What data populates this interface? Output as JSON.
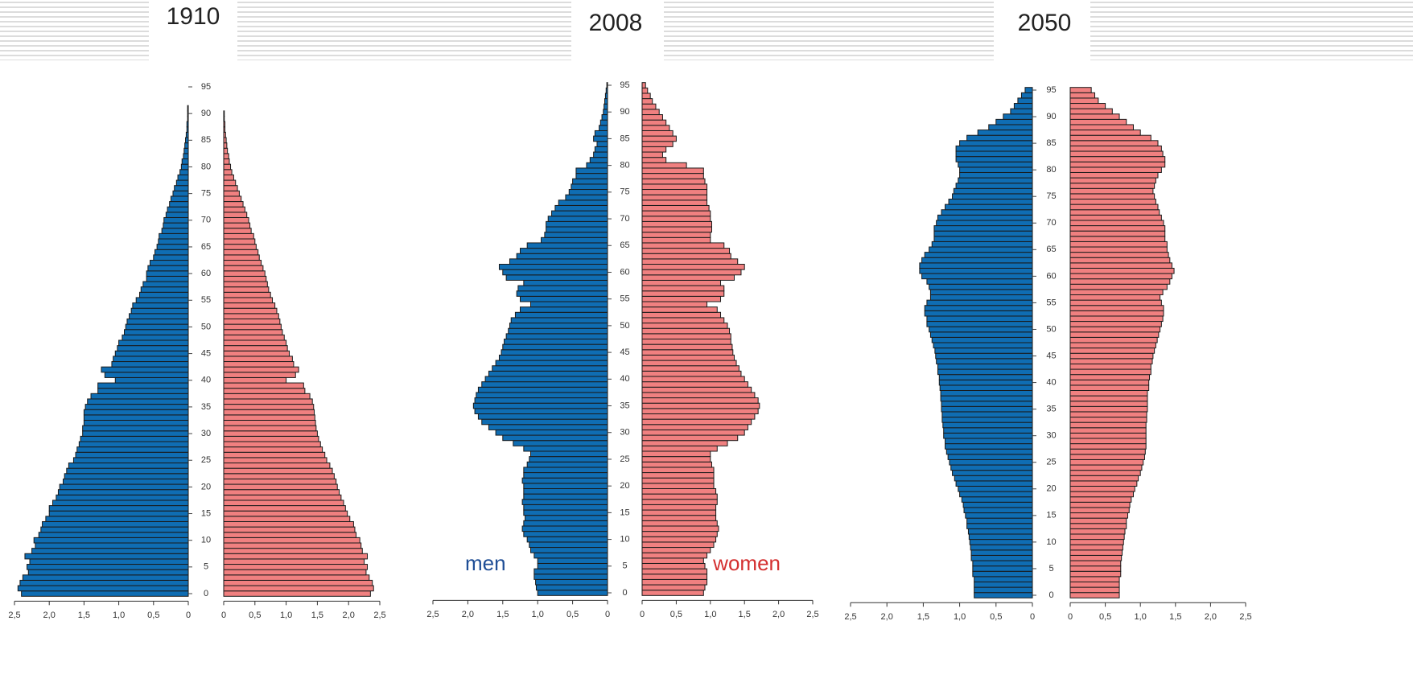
{
  "chart_data": [
    {
      "type": "pyramid",
      "title": "1910",
      "categories": [
        "0",
        null,
        null,
        null,
        null,
        "5",
        null,
        null,
        null,
        null,
        "10",
        null,
        null,
        null,
        null,
        "15",
        null,
        null,
        null,
        null,
        "20",
        null,
        null,
        null,
        null,
        "25",
        null,
        null,
        null,
        null,
        "30",
        null,
        null,
        null,
        null,
        "35",
        null,
        null,
        null,
        null,
        "40",
        null,
        null,
        null,
        null,
        "45",
        null,
        null,
        null,
        null,
        "50",
        null,
        null,
        null,
        null,
        "55",
        null,
        null,
        null,
        null,
        "60",
        null,
        null,
        null,
        null,
        "65",
        null,
        null,
        null,
        null,
        "70",
        null,
        null,
        null,
        null,
        "75",
        null,
        null,
        null,
        null,
        "80",
        null,
        null,
        null,
        null,
        "85",
        null,
        null,
        null,
        null,
        "90",
        null,
        null,
        null,
        null,
        "95"
      ],
      "xlim": [
        0,
        2.5
      ],
      "xticks": [
        0,
        {
          "value": 0.5,
          "label": "0,5"
        },
        {
          "value": 1,
          "label": "1,0"
        },
        {
          "value": 1.5,
          "label": "1,5"
        },
        {
          "value": 2,
          "label": "2,0"
        },
        {
          "value": 2.5,
          "label": "2,5"
        }
      ],
      "series": [
        {
          "color": "#0f6db3",
          "values": [
            2.4,
            2.45,
            2.42,
            2.38,
            2.3,
            2.32,
            2.28,
            2.35,
            2.25,
            2.2,
            2.22,
            2.15,
            2.12,
            2.1,
            2.05,
            2.0,
            2.0,
            1.95,
            1.9,
            1.87,
            1.85,
            1.8,
            1.78,
            1.75,
            1.72,
            1.65,
            1.62,
            1.6,
            1.57,
            1.55,
            1.52,
            1.52,
            1.5,
            1.5,
            1.5,
            1.48,
            1.45,
            1.4,
            1.3,
            1.3,
            1.05,
            1.2,
            1.25,
            1.1,
            1.08,
            1.05,
            1.02,
            1.0,
            0.95,
            0.92,
            0.9,
            0.88,
            0.85,
            0.82,
            0.8,
            0.75,
            0.7,
            0.68,
            0.65,
            0.6,
            0.6,
            0.58,
            0.55,
            0.5,
            0.48,
            0.45,
            0.43,
            0.42,
            0.38,
            0.36,
            0.35,
            0.32,
            0.3,
            0.27,
            0.25,
            0.22,
            0.2,
            0.17,
            0.15,
            0.12,
            0.1,
            0.09,
            0.07,
            0.06,
            0.05,
            0.04,
            0.03,
            0.02,
            0.02,
            0.01,
            0.01,
            0.01,
            0,
            0,
            0,
            0
          ]
        },
        {
          "color": "#f08080",
          "values": [
            2.35,
            2.4,
            2.38,
            2.33,
            2.28,
            2.3,
            2.25,
            2.3,
            2.22,
            2.2,
            2.18,
            2.12,
            2.1,
            2.08,
            2.02,
            1.98,
            1.95,
            1.92,
            1.88,
            1.85,
            1.82,
            1.8,
            1.77,
            1.74,
            1.7,
            1.65,
            1.62,
            1.58,
            1.55,
            1.52,
            1.5,
            1.48,
            1.47,
            1.46,
            1.45,
            1.44,
            1.42,
            1.38,
            1.3,
            1.28,
            1.0,
            1.15,
            1.2,
            1.12,
            1.1,
            1.05,
            1.02,
            1.0,
            0.97,
            0.94,
            0.92,
            0.9,
            0.88,
            0.85,
            0.82,
            0.78,
            0.75,
            0.72,
            0.7,
            0.68,
            0.66,
            0.63,
            0.6,
            0.57,
            0.55,
            0.52,
            0.5,
            0.48,
            0.44,
            0.42,
            0.4,
            0.37,
            0.34,
            0.31,
            0.28,
            0.25,
            0.22,
            0.19,
            0.16,
            0.13,
            0.11,
            0.09,
            0.08,
            0.06,
            0.05,
            0.04,
            0.03,
            0.02,
            0.02,
            0.01,
            0.01,
            0,
            0,
            0,
            0,
            0
          ]
        }
      ]
    },
    {
      "type": "pyramid",
      "title": "2008",
      "categories": [
        "0",
        null,
        null,
        null,
        null,
        "5",
        null,
        null,
        null,
        null,
        "10",
        null,
        null,
        null,
        null,
        "15",
        null,
        null,
        null,
        null,
        "20",
        null,
        null,
        null,
        null,
        "25",
        null,
        null,
        null,
        null,
        "30",
        null,
        null,
        null,
        null,
        "35",
        null,
        null,
        null,
        null,
        "40",
        null,
        null,
        null,
        null,
        "45",
        null,
        null,
        null,
        null,
        "50",
        null,
        null,
        null,
        null,
        "55",
        null,
        null,
        null,
        null,
        "60",
        null,
        null,
        null,
        null,
        "65",
        null,
        null,
        null,
        null,
        "70",
        null,
        null,
        null,
        null,
        "75",
        null,
        null,
        null,
        null,
        "80",
        null,
        null,
        null,
        null,
        "85",
        null,
        null,
        null,
        null,
        "90",
        null,
        null,
        null,
        null,
        "95"
      ],
      "xlim": [
        0,
        2.5
      ],
      "xticks": [
        0,
        {
          "value": 0.5,
          "label": "0,5"
        },
        {
          "value": 1,
          "label": "1,0"
        },
        {
          "value": 1.5,
          "label": "1,5"
        },
        {
          "value": 2,
          "label": "2,0"
        },
        {
          "value": 2.5,
          "label": "2,5"
        }
      ],
      "series": [
        {
          "name": "men",
          "color": "#0f6db3",
          "values": [
            1.0,
            1.02,
            1.03,
            1.05,
            1.05,
            1.0,
            1.0,
            1.05,
            1.1,
            1.12,
            1.15,
            1.2,
            1.22,
            1.2,
            1.18,
            1.2,
            1.2,
            1.22,
            1.2,
            1.2,
            1.2,
            1.22,
            1.2,
            1.2,
            1.15,
            1.12,
            1.1,
            1.2,
            1.35,
            1.5,
            1.6,
            1.7,
            1.8,
            1.85,
            1.9,
            1.92,
            1.9,
            1.88,
            1.85,
            1.8,
            1.75,
            1.7,
            1.65,
            1.6,
            1.55,
            1.52,
            1.5,
            1.48,
            1.45,
            1.42,
            1.4,
            1.38,
            1.32,
            1.25,
            1.1,
            1.25,
            1.3,
            1.28,
            1.2,
            1.45,
            1.5,
            1.55,
            1.4,
            1.3,
            1.25,
            1.15,
            0.95,
            0.9,
            0.88,
            0.88,
            0.85,
            0.8,
            0.75,
            0.7,
            0.6,
            0.55,
            0.52,
            0.5,
            0.45,
            0.45,
            0.3,
            0.25,
            0.2,
            0.18,
            0.15,
            0.2,
            0.18,
            0.12,
            0.1,
            0.08,
            0.06,
            0.05,
            0.04,
            0.03,
            0.02,
            0.01
          ]
        },
        {
          "name": "women",
          "color": "#f08080",
          "values": [
            0.9,
            0.92,
            0.95,
            0.95,
            0.95,
            0.92,
            0.9,
            0.95,
            1.0,
            1.05,
            1.08,
            1.1,
            1.12,
            1.1,
            1.08,
            1.08,
            1.08,
            1.1,
            1.1,
            1.08,
            1.05,
            1.05,
            1.05,
            1.05,
            1.02,
            1.0,
            1.0,
            1.1,
            1.25,
            1.4,
            1.5,
            1.55,
            1.6,
            1.65,
            1.7,
            1.72,
            1.7,
            1.65,
            1.6,
            1.55,
            1.5,
            1.45,
            1.42,
            1.38,
            1.35,
            1.33,
            1.32,
            1.3,
            1.3,
            1.28,
            1.25,
            1.2,
            1.15,
            1.1,
            0.95,
            1.15,
            1.2,
            1.2,
            1.15,
            1.35,
            1.45,
            1.5,
            1.4,
            1.3,
            1.28,
            1.2,
            1.0,
            1.0,
            1.02,
            1.02,
            1.0,
            1.0,
            0.98,
            0.95,
            0.95,
            0.95,
            0.95,
            0.92,
            0.9,
            0.9,
            0.65,
            0.35,
            0.3,
            0.35,
            0.45,
            0.5,
            0.45,
            0.4,
            0.35,
            0.3,
            0.25,
            0.2,
            0.15,
            0.12,
            0.08,
            0.05
          ]
        }
      ]
    },
    {
      "type": "pyramid",
      "title": "2050",
      "categories": [
        "0",
        null,
        null,
        null,
        null,
        "5",
        null,
        null,
        null,
        null,
        "10",
        null,
        null,
        null,
        null,
        "15",
        null,
        null,
        null,
        null,
        "20",
        null,
        null,
        null,
        null,
        "25",
        null,
        null,
        null,
        null,
        "30",
        null,
        null,
        null,
        null,
        "35",
        null,
        null,
        null,
        null,
        "40",
        null,
        null,
        null,
        null,
        "45",
        null,
        null,
        null,
        null,
        "50",
        null,
        null,
        null,
        null,
        "55",
        null,
        null,
        null,
        null,
        "60",
        null,
        null,
        null,
        null,
        "65",
        null,
        null,
        null,
        null,
        "70",
        null,
        null,
        null,
        null,
        "75",
        null,
        null,
        null,
        null,
        "80",
        null,
        null,
        null,
        null,
        "85",
        null,
        null,
        null,
        null,
        "90",
        null,
        null,
        null,
        null,
        "95"
      ],
      "xlim": [
        0,
        2.5
      ],
      "xticks": [
        0,
        {
          "value": 0.5,
          "label": "0,5"
        },
        {
          "value": 1,
          "label": "1,0"
        },
        {
          "value": 1.5,
          "label": "1,5"
        },
        {
          "value": 2,
          "label": "2,0"
        },
        {
          "value": 2.5,
          "label": "2,5"
        }
      ],
      "series": [
        {
          "color": "#0f6db3",
          "values": [
            0.8,
            0.8,
            0.8,
            0.8,
            0.82,
            0.82,
            0.82,
            0.84,
            0.84,
            0.85,
            0.86,
            0.87,
            0.88,
            0.9,
            0.9,
            0.92,
            0.94,
            0.95,
            0.97,
            1.0,
            1.02,
            1.05,
            1.07,
            1.1,
            1.12,
            1.14,
            1.16,
            1.18,
            1.2,
            1.2,
            1.22,
            1.22,
            1.23,
            1.24,
            1.24,
            1.25,
            1.25,
            1.26,
            1.26,
            1.27,
            1.28,
            1.28,
            1.3,
            1.3,
            1.32,
            1.33,
            1.34,
            1.36,
            1.38,
            1.4,
            1.42,
            1.45,
            1.45,
            1.48,
            1.48,
            1.45,
            1.4,
            1.4,
            1.42,
            1.45,
            1.52,
            1.55,
            1.55,
            1.52,
            1.48,
            1.42,
            1.38,
            1.35,
            1.35,
            1.35,
            1.32,
            1.3,
            1.25,
            1.2,
            1.15,
            1.1,
            1.08,
            1.05,
            1.02,
            1.0,
            1.0,
            1.02,
            1.05,
            1.05,
            1.05,
            1.0,
            0.9,
            0.75,
            0.6,
            0.5,
            0.4,
            0.3,
            0.25,
            0.2,
            0.15,
            0.1
          ]
        },
        {
          "color": "#f08080",
          "values": [
            0.7,
            0.7,
            0.7,
            0.7,
            0.72,
            0.72,
            0.72,
            0.73,
            0.74,
            0.75,
            0.76,
            0.77,
            0.78,
            0.8,
            0.8,
            0.82,
            0.84,
            0.85,
            0.87,
            0.9,
            0.92,
            0.95,
            0.97,
            1.0,
            1.02,
            1.04,
            1.06,
            1.07,
            1.08,
            1.08,
            1.08,
            1.08,
            1.08,
            1.09,
            1.09,
            1.1,
            1.1,
            1.1,
            1.1,
            1.12,
            1.12,
            1.13,
            1.15,
            1.15,
            1.17,
            1.18,
            1.2,
            1.22,
            1.24,
            1.26,
            1.28,
            1.3,
            1.32,
            1.33,
            1.33,
            1.3,
            1.28,
            1.32,
            1.38,
            1.42,
            1.45,
            1.48,
            1.45,
            1.42,
            1.4,
            1.38,
            1.38,
            1.35,
            1.35,
            1.35,
            1.33,
            1.3,
            1.27,
            1.25,
            1.22,
            1.2,
            1.18,
            1.2,
            1.22,
            1.25,
            1.3,
            1.35,
            1.35,
            1.32,
            1.3,
            1.25,
            1.15,
            1.0,
            0.9,
            0.8,
            0.7,
            0.6,
            0.5,
            0.4,
            0.35,
            0.3
          ]
        }
      ]
    }
  ]
}
